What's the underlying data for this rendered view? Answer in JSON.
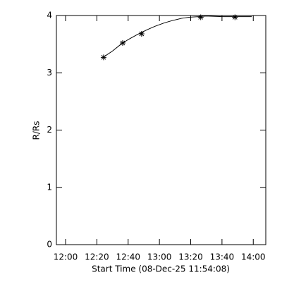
{
  "chart_data": {
    "type": "scatter",
    "xlabel": "Start Time (08-Dec-25 11:54:08)",
    "ylabel": "R/Rs",
    "xlim": [
      714.13,
      848
    ],
    "ylim": [
      0,
      4
    ],
    "xticks": [
      {
        "value": 720,
        "label": "12:00"
      },
      {
        "value": 740,
        "label": "12:20"
      },
      {
        "value": 760,
        "label": "12:40"
      },
      {
        "value": 780,
        "label": "13:00"
      },
      {
        "value": 800,
        "label": "13:20"
      },
      {
        "value": 820,
        "label": "13:40"
      },
      {
        "value": 840,
        "label": "14:00"
      }
    ],
    "yticks": [
      0,
      1,
      2,
      3,
      4
    ],
    "color": "#000000",
    "x": [
      744.3,
      756.5,
      768.6,
      806.4,
      828.3
    ],
    "values": [
      3.27,
      3.52,
      3.68,
      3.97,
      3.97
    ],
    "fit": {
      "x": [
        744,
        750,
        755,
        760,
        766,
        772,
        777,
        783,
        788,
        794,
        799,
        805,
        810,
        820,
        830,
        839
      ],
      "values": [
        3.27,
        3.38,
        3.49,
        3.58,
        3.67,
        3.75,
        3.81,
        3.87,
        3.91,
        3.95,
        3.97,
        3.98,
        3.99,
        3.98,
        3.98,
        3.98
      ]
    }
  }
}
